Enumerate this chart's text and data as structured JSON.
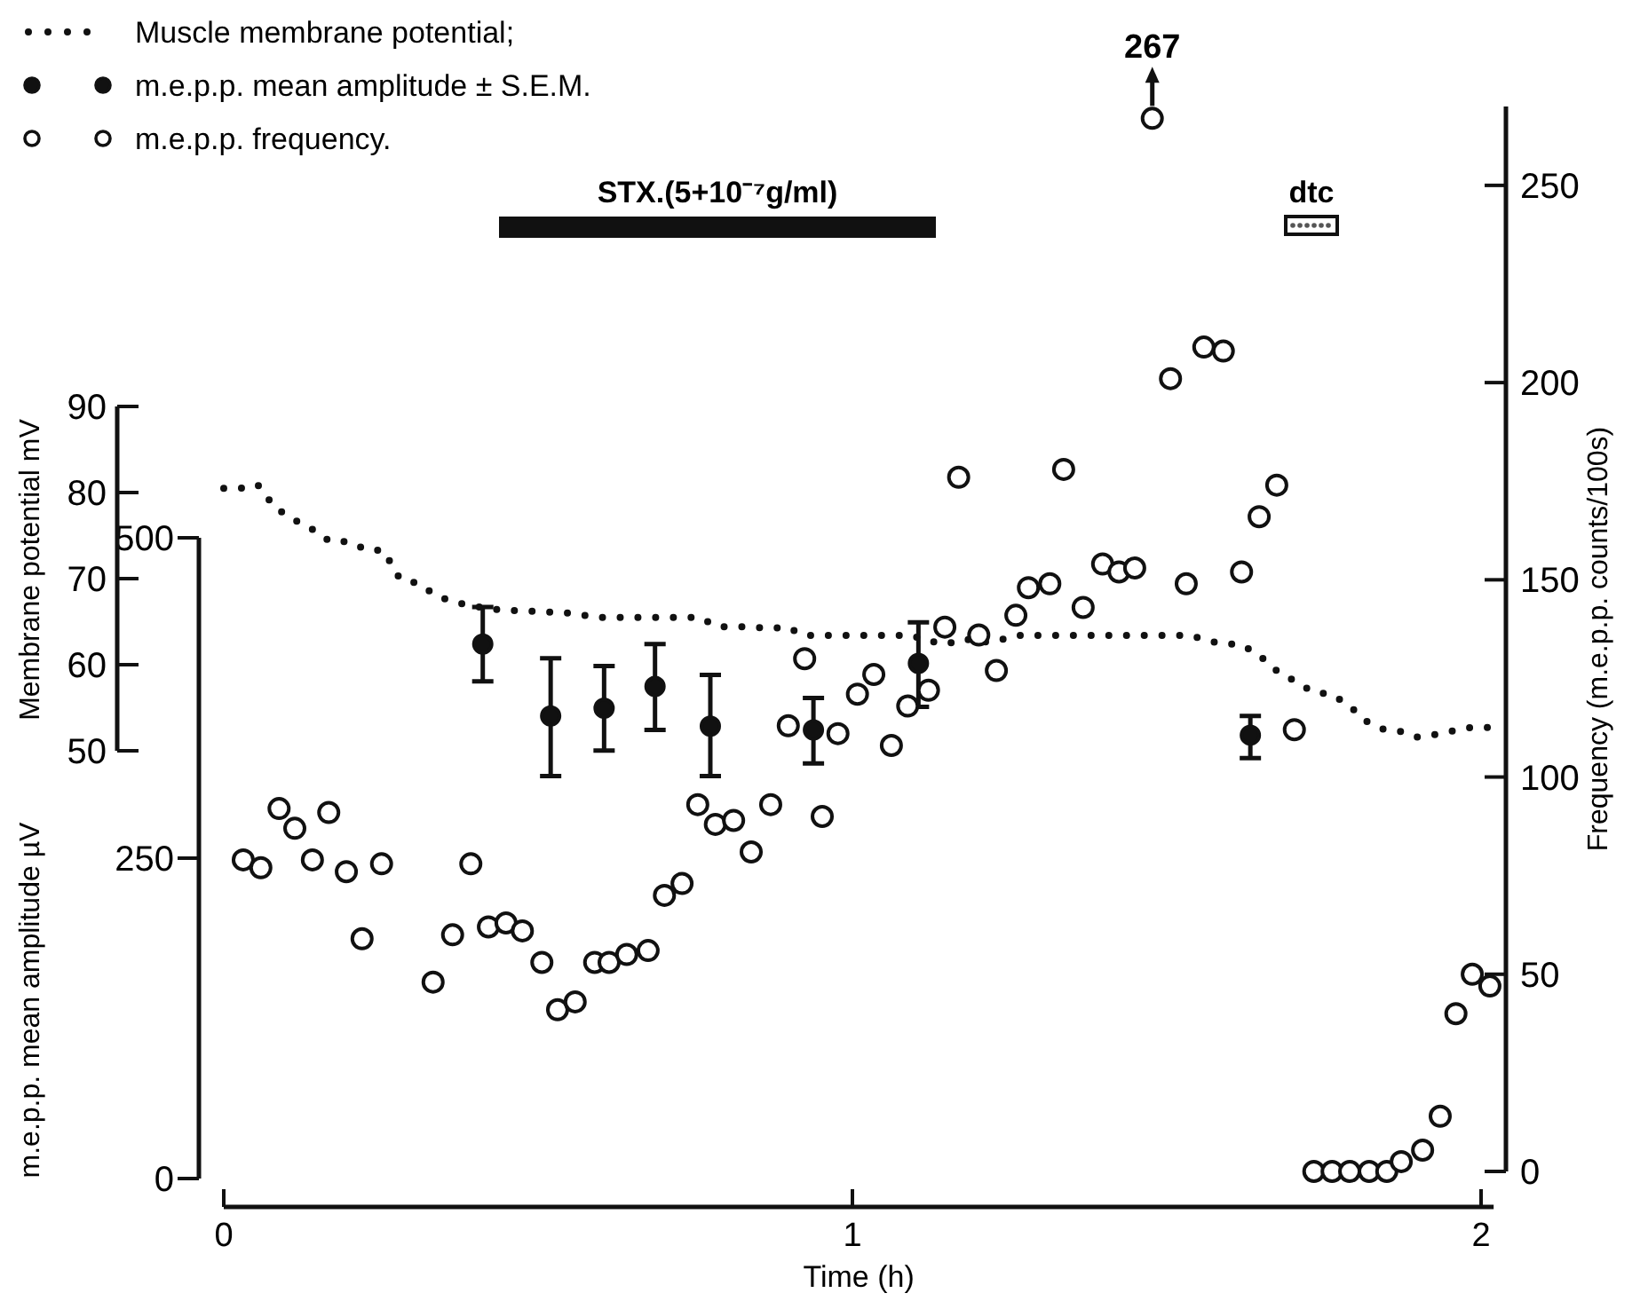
{
  "chart_data": {
    "type": "scatter",
    "xlabel": "Time (h)",
    "ylabel": "Frequency (m.e.p.p. counts/100s)",
    "y2label": "m.e.p.p. mean amplitude µV",
    "y3label": "Membrane potential mV",
    "xlim": [
      0,
      2.02
    ],
    "xticks": [
      0,
      1,
      2
    ],
    "ylim": [
      0,
      270
    ],
    "yticks": [
      0,
      50,
      100,
      150,
      200,
      250
    ],
    "y2lim": [
      0,
      500
    ],
    "y2ticks": [
      0,
      250,
      500
    ],
    "y3lim": [
      50,
      90
    ],
    "y3ticks": [
      50,
      60,
      70,
      80,
      90
    ],
    "legend": "top left",
    "series": [
      {
        "name": "Muscle membrane potential;",
        "type": "line",
        "axis": "y3",
        "line_style": "dotted",
        "marker": "none",
        "color": "#111111",
        "x": [
          0,
          0.028,
          0.054,
          0.082,
          0.113,
          0.144,
          0.169,
          0.198,
          0.229,
          0.254,
          0.28,
          0.311,
          0.336,
          0.364,
          0.393,
          0.421,
          0.449,
          0.477,
          0.506,
          0.534,
          0.562,
          0.59,
          0.619,
          0.647,
          0.672,
          0.701,
          0.729,
          0.757,
          0.785,
          0.814,
          0.839,
          0.87,
          0.895,
          0.924,
          0.952,
          0.98,
          1.006,
          1.034,
          1.065,
          1.093,
          1.119,
          1.15,
          1.178,
          1.203,
          1.232,
          1.26,
          1.288,
          1.316,
          1.339,
          1.367,
          1.393,
          1.424,
          1.452,
          1.48,
          1.508,
          1.537,
          1.565,
          1.588,
          1.616,
          1.644,
          1.675,
          1.701,
          1.734,
          1.76,
          1.788,
          1.816,
          1.845,
          1.87,
          1.898,
          1.927,
          1.955,
          1.983,
          2.011
        ],
        "values": [
          80.5,
          80.5,
          80.9,
          78.2,
          76.8,
          75.6,
          74.3,
          74.3,
          73.3,
          73.3,
          70,
          69.4,
          68.1,
          67.3,
          66.9,
          66.5,
          66.3,
          66.3,
          66.1,
          66.1,
          65.9,
          65.5,
          65.5,
          65.5,
          65.5,
          65.5,
          65.5,
          65.5,
          64.4,
          64.4,
          64.4,
          64.2,
          64.4,
          63.4,
          63.4,
          63.4,
          63.4,
          63.4,
          63.4,
          63.4,
          62.8,
          62.4,
          63,
          62.6,
          62.8,
          63.4,
          63.4,
          63.4,
          63.4,
          63.4,
          63.4,
          63.4,
          63.4,
          63.4,
          63.4,
          63.4,
          62.8,
          62.4,
          62.4,
          61.3,
          59.3,
          58.2,
          56.8,
          56.6,
          55.4,
          53.5,
          52.5,
          52.3,
          51.6,
          51.9,
          52.3,
          52.7,
          52.7
        ]
      },
      {
        "name": "m.e.p.p. mean amplitude ± S.E.M.",
        "axis": "y2",
        "marker": "circle",
        "color": "#111111",
        "x": [
          0.412,
          0.52,
          0.605,
          0.686,
          0.774,
          0.938,
          1.105,
          1.633
        ],
        "values": [
          417,
          361,
          367,
          384,
          353,
          350,
          402,
          346
        ],
        "errors": [
          [
            388,
            446
          ],
          [
            314,
            406
          ],
          [
            334,
            400
          ],
          [
            350,
            417
          ],
          [
            314,
            393
          ],
          [
            324,
            375
          ],
          [
            368,
            434
          ],
          [
            328,
            361
          ]
        ]
      },
      {
        "name": "m.e.p.p. frequency.",
        "marker": "circle",
        "color": "#111111",
        "x": [
          0.031,
          0.059,
          0.088,
          0.113,
          0.141,
          0.167,
          0.195,
          0.22,
          0.251,
          0.333,
          0.364,
          0.393,
          0.421,
          0.449,
          0.475,
          0.506,
          0.531,
          0.559,
          0.59,
          0.613,
          0.641,
          0.675,
          0.701,
          0.729,
          0.754,
          0.782,
          0.811,
          0.839,
          0.87,
          0.898,
          0.924,
          0.952,
          0.977,
          1.008,
          1.034,
          1.062,
          1.088,
          1.121,
          1.147,
          1.169,
          1.201,
          1.229,
          1.26,
          1.28,
          1.314,
          1.336,
          1.367,
          1.398,
          1.424,
          1.449,
          1.477,
          1.506,
          1.531,
          1.559,
          1.59,
          1.619,
          1.647,
          1.675,
          1.703,
          1.734,
          1.763,
          1.791,
          1.822,
          1.85,
          1.873,
          1.907,
          1.935,
          1.96,
          1.986,
          2.014
        ],
        "values": [
          79,
          77,
          92,
          87,
          79,
          91,
          76,
          59,
          78,
          48,
          60,
          78,
          62,
          63,
          61,
          53,
          41,
          43,
          53,
          53,
          55,
          56,
          70,
          73,
          93,
          88,
          89,
          81,
          93,
          113,
          130,
          90,
          111,
          121,
          126,
          108,
          118,
          122,
          138,
          176,
          136,
          127,
          141,
          148,
          149,
          178,
          143,
          154,
          152,
          153,
          267,
          201,
          149,
          209,
          208,
          152,
          166,
          174,
          112,
          0,
          0,
          0,
          0,
          0,
          2.5,
          5.4,
          14,
          40,
          50,
          47
        ],
        "value_labels": [
          null,
          null,
          null,
          null,
          null,
          null,
          null,
          null,
          null,
          null,
          null,
          null,
          null,
          null,
          null,
          null,
          null,
          null,
          null,
          null,
          null,
          null,
          null,
          null,
          null,
          null,
          null,
          null,
          null,
          null,
          null,
          null,
          null,
          null,
          null,
          null,
          null,
          null,
          null,
          null,
          null,
          null,
          null,
          null,
          null,
          null,
          null,
          null,
          null,
          null,
          "267",
          null,
          null,
          null,
          null,
          null,
          null,
          null,
          null,
          null,
          null,
          null,
          null,
          null,
          null,
          null,
          null,
          null,
          null,
          null
        ]
      }
    ],
    "annotations": [
      "STX.(5+10⁻⁷g/ml)",
      "dtc"
    ]
  }
}
